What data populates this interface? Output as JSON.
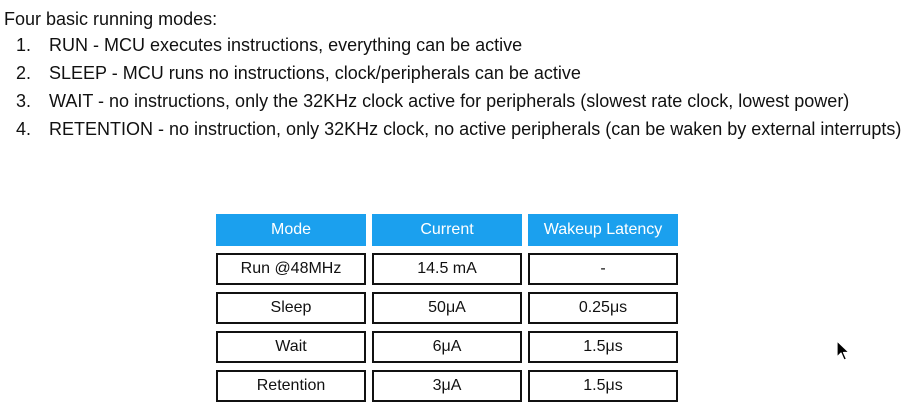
{
  "intro": "Four basic running modes:",
  "modes": [
    {
      "num": "1.",
      "text": "RUN - MCU executes instructions, everything can be active"
    },
    {
      "num": "2.",
      "text": "SLEEP - MCU runs no instructions, clock/peripherals can be active"
    },
    {
      "num": "3.",
      "text": "WAIT - no instructions, only the 32KHz clock active for peripherals (slowest rate clock, lowest power)"
    },
    {
      "num": "4.",
      "text": "RETENTION - no instruction, only 32KHz clock, no active peripherals (can be waken by external interrupts)"
    }
  ],
  "table": {
    "headers": [
      "Mode",
      "Current",
      "Wakeup Latency"
    ],
    "rows": [
      [
        "Run @48MHz",
        "14.5 mA",
        "-"
      ],
      [
        "Sleep",
        "50μA",
        "0.25μs"
      ],
      [
        "Wait",
        "6μA",
        "1.5μs"
      ],
      [
        "Retention",
        "3μA",
        "1.5μs"
      ]
    ]
  },
  "colors": {
    "header_bg": "#1ba0ee",
    "header_text": "#ffffff",
    "border": "#111111"
  },
  "icons": {
    "cursor": "mouse-pointer-icon"
  }
}
